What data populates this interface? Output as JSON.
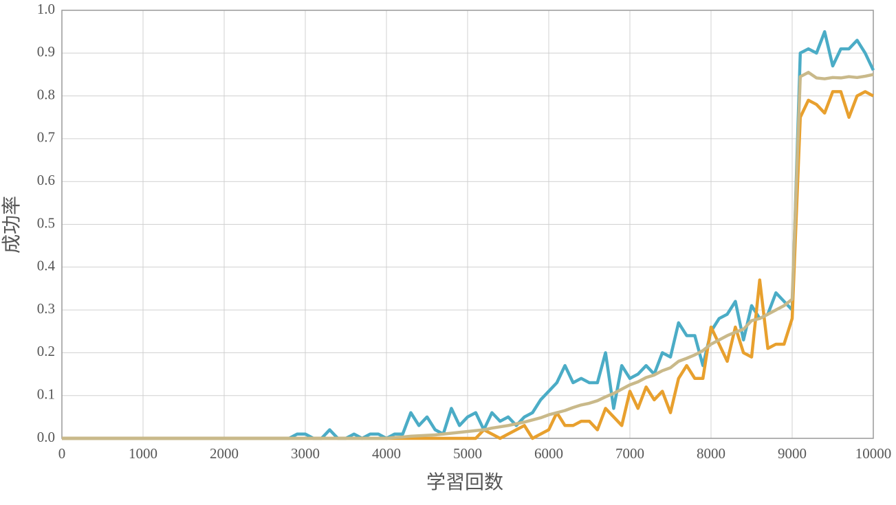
{
  "chart_data": {
    "type": "line",
    "x_label": "学習回数",
    "y_label": "成功率",
    "x": [
      0,
      100,
      200,
      300,
      400,
      500,
      600,
      700,
      800,
      900,
      1000,
      1100,
      1200,
      1300,
      1400,
      1500,
      1600,
      1700,
      1800,
      1900,
      2000,
      2100,
      2200,
      2300,
      2400,
      2500,
      2600,
      2700,
      2800,
      2900,
      3000,
      3100,
      3200,
      3300,
      3400,
      3500,
      3600,
      3700,
      3800,
      3900,
      4000,
      4100,
      4200,
      4300,
      4400,
      4500,
      4600,
      4700,
      4800,
      4900,
      5000,
      5100,
      5200,
      5300,
      5400,
      5500,
      5600,
      5700,
      5800,
      5900,
      6000,
      6100,
      6200,
      6300,
      6400,
      6500,
      6600,
      6700,
      6800,
      6900,
      7000,
      7100,
      7200,
      7300,
      7400,
      7500,
      7600,
      7700,
      7800,
      7900,
      8000,
      8100,
      8200,
      8300,
      8400,
      8500,
      8600,
      8700,
      8800,
      8900,
      9000,
      9100,
      9200,
      9300,
      9400,
      9500,
      9600,
      9700,
      9800,
      9900,
      10000
    ],
    "series": [
      {
        "color": "#4bacc6",
        "values": [
          0,
          0,
          0,
          0,
          0,
          0,
          0,
          0,
          0,
          0,
          0,
          0,
          0,
          0,
          0,
          0,
          0,
          0,
          0,
          0,
          0,
          0,
          0,
          0,
          0,
          0,
          0,
          0,
          0,
          0.01,
          0.01,
          0,
          0,
          0.02,
          0,
          0,
          0.01,
          0,
          0.01,
          0.01,
          0,
          0.01,
          0.01,
          0.06,
          0.03,
          0.05,
          0.02,
          0.01,
          0.07,
          0.03,
          0.05,
          0.06,
          0.02,
          0.06,
          0.04,
          0.05,
          0.03,
          0.05,
          0.06,
          0.09,
          0.11,
          0.13,
          0.17,
          0.13,
          0.14,
          0.13,
          0.13,
          0.2,
          0.07,
          0.17,
          0.14,
          0.15,
          0.17,
          0.15,
          0.2,
          0.19,
          0.27,
          0.24,
          0.24,
          0.17,
          0.25,
          0.28,
          0.29,
          0.32,
          0.23,
          0.31,
          0.28,
          0.29,
          0.34,
          0.32,
          0.3,
          0.9,
          0.91,
          0.9,
          0.95,
          0.87,
          0.91,
          0.91,
          0.93,
          0.9,
          0.86
        ]
      },
      {
        "color": "#e8a02e",
        "values": [
          0,
          0,
          0,
          0,
          0,
          0,
          0,
          0,
          0,
          0,
          0,
          0,
          0,
          0,
          0,
          0,
          0,
          0,
          0,
          0,
          0,
          0,
          0,
          0,
          0,
          0,
          0,
          0,
          0,
          0,
          0,
          0,
          0,
          0,
          0,
          0,
          0,
          0,
          0,
          0,
          0,
          0,
          0,
          0,
          0,
          0,
          0,
          0,
          0,
          0,
          0,
          0,
          0.02,
          0.01,
          0,
          0.01,
          0.02,
          0.03,
          0,
          0.01,
          0.02,
          0.06,
          0.03,
          0.03,
          0.04,
          0.04,
          0.02,
          0.07,
          0.05,
          0.03,
          0.11,
          0.07,
          0.12,
          0.09,
          0.11,
          0.06,
          0.14,
          0.17,
          0.14,
          0.14,
          0.26,
          0.22,
          0.18,
          0.26,
          0.2,
          0.19,
          0.37,
          0.21,
          0.22,
          0.22,
          0.28,
          0.75,
          0.79,
          0.78,
          0.76,
          0.81,
          0.81,
          0.75,
          0.8,
          0.81,
          0.8
        ]
      },
      {
        "color": "#c9b98a",
        "values": [
          0,
          0,
          0,
          0,
          0,
          0,
          0,
          0,
          0,
          0,
          0,
          0,
          0,
          0,
          0,
          0,
          0,
          0,
          0,
          0,
          0,
          0,
          0,
          0,
          0,
          0,
          0,
          0,
          0,
          0,
          0,
          0,
          0,
          0,
          0,
          0,
          0,
          0,
          0,
          0,
          0,
          0.002,
          0.003,
          0.005,
          0.006,
          0.007,
          0.008,
          0.01,
          0.012,
          0.014,
          0.016,
          0.018,
          0.02,
          0.024,
          0.027,
          0.03,
          0.034,
          0.038,
          0.043,
          0.048,
          0.055,
          0.06,
          0.065,
          0.072,
          0.078,
          0.082,
          0.088,
          0.097,
          0.105,
          0.115,
          0.125,
          0.132,
          0.142,
          0.148,
          0.158,
          0.165,
          0.18,
          0.187,
          0.195,
          0.205,
          0.22,
          0.23,
          0.24,
          0.248,
          0.255,
          0.275,
          0.28,
          0.29,
          0.3,
          0.31,
          0.325,
          0.845,
          0.855,
          0.842,
          0.84,
          0.843,
          0.842,
          0.845,
          0.843,
          0.846,
          0.85
        ]
      }
    ],
    "xlim": [
      0,
      10000
    ],
    "xticks": [
      0,
      1000,
      2000,
      3000,
      4000,
      5000,
      6000,
      7000,
      8000,
      9000,
      10000
    ],
    "ylim": [
      0,
      1
    ],
    "yticks": [
      {
        "value": 0,
        "label": "0.0"
      },
      0.1,
      0.2,
      0.3,
      0.4,
      0.5,
      0.6,
      0.7,
      0.8,
      0.9,
      {
        "value": 1,
        "label": "1.0"
      }
    ],
    "grid": true
  }
}
